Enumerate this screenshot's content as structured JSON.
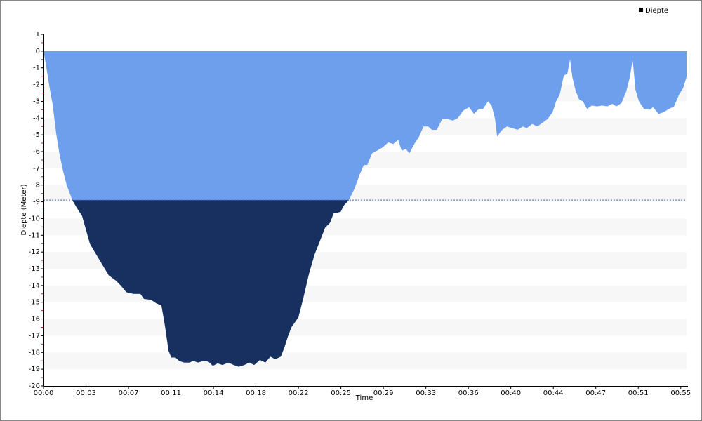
{
  "chart_data": {
    "type": "area",
    "x_label": "Time",
    "y_label": "Diepte (Meter)",
    "xlim": [
      0,
      55.5
    ],
    "ylim": [
      -20,
      1
    ],
    "xticks": [
      {
        "value": 0,
        "label": "00:00"
      },
      {
        "value": 3.667,
        "label": "00:03"
      },
      {
        "value": 7.333,
        "label": "00:07"
      },
      {
        "value": 11,
        "label": "00:11"
      },
      {
        "value": 14.667,
        "label": "00:14"
      },
      {
        "value": 18.333,
        "label": "00:18"
      },
      {
        "value": 22,
        "label": "00:22"
      },
      {
        "value": 25.667,
        "label": "00:25"
      },
      {
        "value": 29.333,
        "label": "00:29"
      },
      {
        "value": 33,
        "label": "00:33"
      },
      {
        "value": 36.667,
        "label": "00:36"
      },
      {
        "value": 40.333,
        "label": "00:40"
      },
      {
        "value": 44,
        "label": "00:44"
      },
      {
        "value": 47.667,
        "label": "00:47"
      },
      {
        "value": 51.333,
        "label": "00:51"
      },
      {
        "value": 55,
        "label": "00:55"
      }
    ],
    "yticks": [
      1,
      0,
      -1,
      -2,
      -3,
      -4,
      -5,
      -6,
      -7,
      -8,
      -9,
      -10,
      -11,
      -12,
      -13,
      -14,
      -15,
      -16,
      -17,
      -18,
      -19,
      -20
    ],
    "reference_line": -8.9,
    "reference_color": "#4a5fd6",
    "below_color": "#17305f",
    "legend_marker_color": "#000000",
    "legend": "top-right",
    "x": [
      0,
      0.18,
      0.48,
      0.79,
      1.09,
      1.39,
      1.7,
      2.0,
      2.48,
      2.91,
      3.33,
      3.64,
      4.0,
      4.42,
      5.03,
      5.64,
      6.24,
      6.67,
      7.15,
      7.76,
      8.36,
      8.67,
      9.27,
      9.7,
      10.18,
      10.48,
      10.79,
      11.03,
      11.39,
      11.7,
      12.12,
      12.61,
      12.91,
      13.33,
      13.82,
      14.24,
      14.61,
      15.03,
      15.45,
      15.94,
      16.42,
      16.85,
      17.33,
      17.76,
      18.18,
      18.67,
      19.15,
      19.58,
      20.0,
      20.48,
      20.79,
      21.09,
      21.39,
      22.0,
      22.42,
      22.91,
      23.39,
      23.82,
      24.3,
      24.73,
      25.03,
      25.64,
      25.94,
      26.36,
      26.85,
      27.27,
      27.64,
      27.94,
      28.36,
      28.79,
      29.27,
      29.76,
      30.18,
      30.61,
      30.91,
      31.27,
      31.58,
      32.0,
      32.42,
      32.79,
      33.21,
      33.52,
      33.94,
      34.42,
      34.85,
      35.33,
      35.76,
      36.24,
      36.73,
      37.15,
      37.58,
      37.94,
      38.36,
      38.67,
      38.97,
      39.15,
      39.58,
      40.0,
      40.48,
      40.91,
      41.39,
      41.7,
      42.18,
      42.61,
      43.03,
      43.52,
      43.94,
      44.24,
      44.55,
      44.91,
      45.21,
      45.45,
      45.64,
      45.94,
      46.24,
      46.55,
      46.91,
      47.33,
      47.76,
      48.18,
      48.67,
      49.09,
      49.45,
      49.88,
      50.3,
      50.61,
      50.85,
      51.09,
      51.39,
      51.82,
      52.3,
      52.61,
      53.09,
      53.52,
      54.0,
      54.42,
      54.85,
      55.21,
      55.5
    ],
    "series": [
      {
        "name": "Diepte",
        "color": "#6e9fec",
        "values": [
          0,
          -0.7,
          -2.0,
          -3.2,
          -4.9,
          -6.2,
          -7.2,
          -8.0,
          -8.9,
          -9.4,
          -9.85,
          -10.6,
          -11.5,
          -12.0,
          -12.7,
          -13.4,
          -13.7,
          -14.0,
          -14.4,
          -14.5,
          -14.5,
          -14.8,
          -14.85,
          -15.05,
          -15.2,
          -16.4,
          -17.9,
          -18.3,
          -18.3,
          -18.5,
          -18.6,
          -18.6,
          -18.5,
          -18.6,
          -18.5,
          -18.55,
          -18.8,
          -18.65,
          -18.75,
          -18.6,
          -18.75,
          -18.85,
          -18.75,
          -18.6,
          -18.75,
          -18.45,
          -18.6,
          -18.25,
          -18.4,
          -18.25,
          -17.7,
          -17.05,
          -16.5,
          -15.9,
          -14.75,
          -13.3,
          -12.15,
          -11.4,
          -10.55,
          -10.25,
          -9.7,
          -9.6,
          -9.2,
          -8.9,
          -8.2,
          -7.4,
          -6.8,
          -6.8,
          -6.1,
          -5.95,
          -5.75,
          -5.45,
          -5.55,
          -5.3,
          -5.95,
          -5.85,
          -6.1,
          -5.55,
          -5.1,
          -4.5,
          -4.5,
          -4.7,
          -4.7,
          -4.05,
          -4.05,
          -4.15,
          -4.0,
          -3.55,
          -3.35,
          -3.75,
          -3.45,
          -3.45,
          -3.0,
          -3.25,
          -4.05,
          -5.1,
          -4.7,
          -4.5,
          -4.6,
          -4.7,
          -4.5,
          -4.6,
          -4.35,
          -4.5,
          -4.3,
          -4.05,
          -3.65,
          -3.0,
          -2.6,
          -1.45,
          -1.35,
          -0.5,
          -1.55,
          -2.4,
          -2.9,
          -3.0,
          -3.45,
          -3.25,
          -3.3,
          -3.25,
          -3.3,
          -3.15,
          -3.3,
          -3.1,
          -2.4,
          -1.55,
          -0.5,
          -2.3,
          -3.0,
          -3.45,
          -3.5,
          -3.35,
          -3.75,
          -3.65,
          -3.45,
          -3.3,
          -2.6,
          -2.2,
          -1.55
        ]
      }
    ]
  }
}
